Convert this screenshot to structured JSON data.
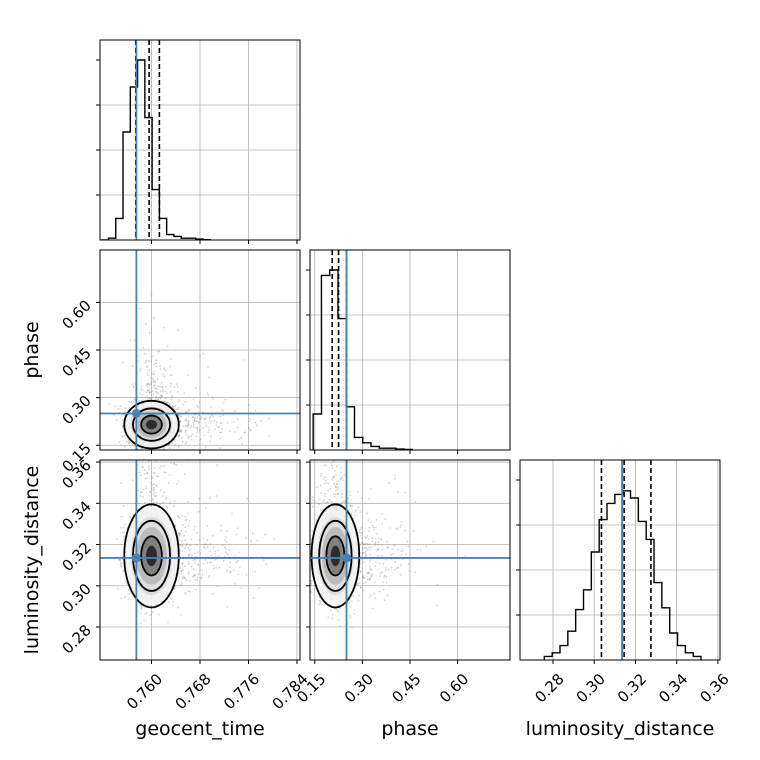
{
  "chart_data": {
    "type": "corner",
    "parameters": [
      "geocent_time",
      "phase",
      "luminosity_distance"
    ],
    "truth_color": "#4682b4",
    "axes": {
      "geocent_time": {
        "range": [
          0.7515,
          0.7845
        ],
        "ticks": [
          0.76,
          0.768,
          0.776,
          0.784
        ],
        "tick_labels": [
          "0.760",
          "0.768",
          "0.776",
          "0.784"
        ]
      },
      "phase": {
        "range": [
          0.135,
          0.765
        ],
        "ticks": [
          0.15,
          0.3,
          0.45,
          0.6
        ],
        "tick_labels": [
          "0.15",
          "0.30",
          "0.45",
          "0.60"
        ]
      },
      "luminosity_distance": {
        "range": [
          0.264,
          0.361
        ],
        "ticks": [
          0.28,
          0.3,
          0.32,
          0.34,
          0.36
        ],
        "tick_labels": [
          "0.28",
          "0.30",
          "0.32",
          "0.34",
          "0.36"
        ]
      }
    },
    "truths": {
      "geocent_time": 0.7575,
      "phase": 0.25,
      "luminosity_distance": 0.3135
    },
    "quantiles": {
      "geocent_time": [
        0.7574,
        0.7596,
        0.7613
      ],
      "phase": [
        0.205,
        0.225,
        0.25
      ],
      "luminosity_distance": [
        0.3035,
        0.3145,
        0.3275
      ]
    },
    "histograms": {
      "geocent_time": {
        "bin_width": 0.0012,
        "bins": [
          [
            0.7517,
            0.0
          ],
          [
            0.7529,
            0.01
          ],
          [
            0.7541,
            0.12
          ],
          [
            0.7553,
            0.6
          ],
          [
            0.7565,
            0.85
          ],
          [
            0.7577,
            1.0
          ],
          [
            0.7589,
            0.68
          ],
          [
            0.7601,
            0.28
          ],
          [
            0.7613,
            0.12
          ],
          [
            0.7625,
            0.03
          ],
          [
            0.7637,
            0.02
          ],
          [
            0.7649,
            0.01
          ],
          [
            0.7661,
            0.01
          ],
          [
            0.7673,
            0.005
          ],
          [
            0.7685,
            0.002
          ]
        ]
      },
      "phase": {
        "bin_width": 0.0262,
        "bins": [
          [
            0.145,
            0.2
          ],
          [
            0.171,
            0.97
          ],
          [
            0.197,
            1.0
          ],
          [
            0.223,
            0.73
          ],
          [
            0.249,
            0.24
          ],
          [
            0.275,
            0.07
          ],
          [
            0.301,
            0.04
          ],
          [
            0.327,
            0.02
          ],
          [
            0.353,
            0.01
          ],
          [
            0.379,
            0.01
          ],
          [
            0.405,
            0.005
          ],
          [
            0.431,
            0.003
          ]
        ]
      },
      "luminosity_distance": {
        "bin_width": 0.0038,
        "bins": [
          [
            0.2758,
            0.02
          ],
          [
            0.2796,
            0.04
          ],
          [
            0.2834,
            0.08
          ],
          [
            0.2872,
            0.16
          ],
          [
            0.291,
            0.28
          ],
          [
            0.2948,
            0.39
          ],
          [
            0.2986,
            0.6
          ],
          [
            0.3024,
            0.78
          ],
          [
            0.3062,
            0.87
          ],
          [
            0.31,
            0.92
          ],
          [
            0.3138,
            0.94
          ],
          [
            0.3176,
            0.9
          ],
          [
            0.3214,
            0.77
          ],
          [
            0.3252,
            0.67
          ],
          [
            0.329,
            0.43
          ],
          [
            0.3328,
            0.29
          ],
          [
            0.3366,
            0.15
          ],
          [
            0.3404,
            0.08
          ],
          [
            0.3442,
            0.04
          ],
          [
            0.348,
            0.02
          ]
        ]
      }
    },
    "posterior_peak": {
      "geocent_time": 0.76,
      "phase": 0.215,
      "luminosity_distance": 0.3145
    },
    "posterior_spread": {
      "geocent_time": 0.0018,
      "phase": 0.03,
      "luminosity_distance": 0.01
    },
    "grid": true
  }
}
